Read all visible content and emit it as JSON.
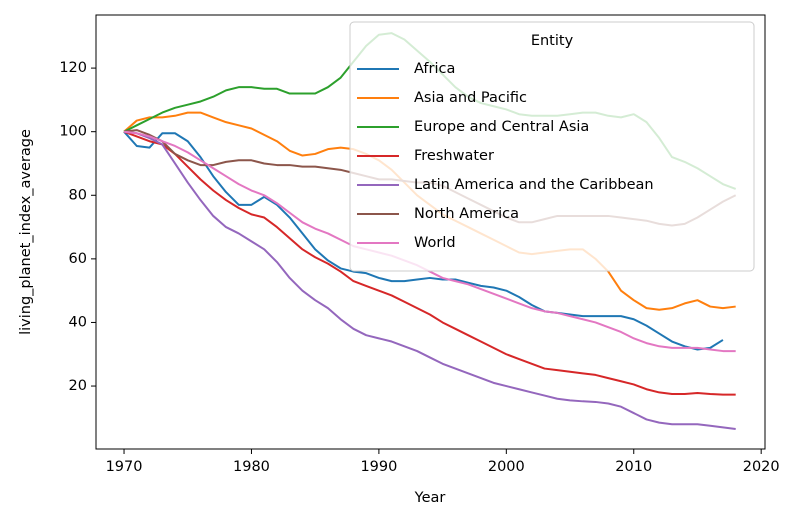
{
  "chart_data": {
    "type": "line",
    "xlabel": "Year",
    "ylabel": "living_planet_index_average",
    "x": [
      1970,
      1971,
      1972,
      1973,
      1974,
      1975,
      1976,
      1977,
      1978,
      1979,
      1980,
      1981,
      1982,
      1983,
      1984,
      1985,
      1986,
      1987,
      1988,
      1989,
      1990,
      1991,
      1992,
      1993,
      1994,
      1995,
      1996,
      1997,
      1998,
      1999,
      2000,
      2001,
      2002,
      2003,
      2004,
      2005,
      2006,
      2007,
      2008,
      2009,
      2010,
      2011,
      2012,
      2013,
      2014,
      2015,
      2016,
      2017,
      2018
    ],
    "xlim": [
      1967.8,
      2020.3
    ],
    "xticks": [
      1970,
      1980,
      1990,
      2000,
      2010,
      2020
    ],
    "ylim": [
      0.2,
      136.7
    ],
    "yticks": [
      20,
      40,
      60,
      80,
      100,
      120
    ],
    "grid": false,
    "legend": "upper right",
    "legend_title": "Entity",
    "series": [
      {
        "name": "Africa",
        "color": "#1f77b4",
        "values": [
          100,
          95.5,
          95,
          99.5,
          99.5,
          97,
          92,
          86,
          81,
          77,
          77,
          79.5,
          77,
          73,
          68,
          63,
          59.5,
          57,
          56,
          55.5,
          54,
          53,
          53,
          53.5,
          54,
          53.5,
          53.5,
          52.5,
          51.5,
          51,
          50,
          48,
          45.5,
          43.5,
          43,
          42.5,
          42,
          42,
          42,
          42,
          41,
          39,
          36.5,
          34,
          32.5,
          31.5,
          32,
          34.5,
          null
        ]
      },
      {
        "name": "Asia and Pacific",
        "color": "#ff7f0e",
        "values": [
          100,
          103.5,
          104.5,
          104.5,
          105,
          106,
          106,
          104.5,
          103,
          102,
          101,
          99,
          97,
          94,
          92.5,
          93,
          94.5,
          95,
          94.5,
          93,
          91,
          88,
          84,
          80,
          77,
          74,
          72,
          70,
          68,
          66,
          64,
          62,
          61.5,
          62,
          62.5,
          63,
          63,
          60,
          56,
          50,
          47,
          44.5,
          44,
          44.5,
          46,
          47,
          45,
          44.5,
          45
        ]
      },
      {
        "name": "Europe and Central Asia",
        "color": "#2ca02c",
        "values": [
          100,
          102,
          104,
          106,
          107.5,
          108.5,
          109.5,
          111,
          113,
          114,
          114,
          113.5,
          113.5,
          112,
          112,
          112,
          114,
          117,
          122,
          127,
          130.5,
          131,
          129,
          125.5,
          122,
          118,
          114,
          111,
          109,
          108,
          107,
          105.5,
          105,
          105,
          105,
          105.5,
          106,
          106,
          105,
          104.5,
          105.5,
          103,
          98,
          92,
          90.5,
          88.5,
          86,
          83.5,
          82
        ]
      },
      {
        "name": "Freshwater",
        "color": "#d62728",
        "values": [
          100,
          98.5,
          97,
          96,
          93,
          89,
          85,
          81.5,
          78.5,
          76,
          74,
          73,
          70,
          66.5,
          63,
          60.5,
          58.5,
          56,
          53,
          51.5,
          50,
          48.5,
          46.5,
          44.5,
          42.5,
          40,
          38,
          36,
          34,
          32,
          30,
          28.5,
          27,
          25.5,
          25,
          24.5,
          24,
          23.5,
          22.5,
          21.5,
          20.5,
          19,
          18,
          17.5,
          17.5,
          17.8,
          17.5,
          17.3,
          17.3
        ]
      },
      {
        "name": "Latin America and the Caribbean",
        "color": "#9467bd",
        "values": [
          100,
          99.5,
          98,
          96,
          90,
          84,
          78.5,
          73.5,
          70,
          68,
          65.5,
          63,
          59,
          54,
          50,
          47,
          44.5,
          41,
          38,
          36,
          35,
          34,
          32.5,
          31,
          29,
          27,
          25.5,
          24,
          22.5,
          21,
          20,
          19,
          18,
          17,
          16,
          15.5,
          15.2,
          15,
          14.5,
          13.5,
          11.5,
          9.5,
          8.5,
          8,
          8,
          8,
          7.5,
          7,
          6.5
        ]
      },
      {
        "name": "North America",
        "color": "#8c564b",
        "values": [
          100,
          100.5,
          99,
          97,
          93,
          91,
          89.5,
          89.5,
          90.5,
          91,
          91,
          90,
          89.5,
          89.5,
          89,
          89,
          88.5,
          88,
          87,
          86,
          85,
          85,
          84.5,
          84,
          84,
          83,
          81,
          79,
          77,
          75,
          73,
          71.5,
          71.5,
          72.5,
          73.5,
          73.5,
          73.5,
          73.5,
          73.5,
          73,
          72.5,
          72,
          71,
          70.5,
          71,
          73,
          75.5,
          78,
          80
        ]
      },
      {
        "name": "World",
        "color": "#e377c2",
        "values": [
          100,
          99.5,
          98.5,
          97,
          95.5,
          93.5,
          91,
          88.5,
          86,
          83.5,
          81.5,
          80,
          77.5,
          74.5,
          71.5,
          69.5,
          68,
          66,
          64,
          63,
          62,
          61,
          59.5,
          58,
          56,
          54,
          53,
          52,
          50.5,
          49,
          47.5,
          46,
          44.5,
          43.5,
          43,
          42,
          41,
          40,
          38.5,
          37,
          35,
          33.5,
          32.5,
          32,
          32,
          32,
          31.5,
          31,
          31
        ]
      }
    ]
  }
}
